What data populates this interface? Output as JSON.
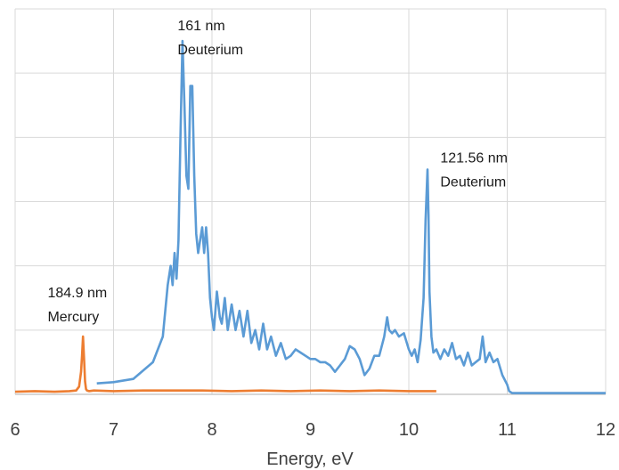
{
  "chart_data": {
    "type": "line",
    "xlabel": "Energy, eV",
    "ylabel": "",
    "xlim": [
      6,
      12
    ],
    "ylim": [
      0,
      6
    ],
    "x_ticks": [
      "6",
      "7",
      "8",
      "9",
      "10",
      "11",
      "12"
    ],
    "grid": true,
    "legend": "none",
    "series": [
      {
        "color": "#5b9bd5",
        "x": [
          6.83,
          7.0,
          7.2,
          7.4,
          7.5,
          7.55,
          7.58,
          7.6,
          7.62,
          7.64,
          7.66,
          7.68,
          7.7,
          7.72,
          7.74,
          7.76,
          7.78,
          7.8,
          7.82,
          7.84,
          7.86,
          7.88,
          7.9,
          7.92,
          7.94,
          7.96,
          7.98,
          8.0,
          8.02,
          8.05,
          8.08,
          8.1,
          8.13,
          8.16,
          8.2,
          8.24,
          8.28,
          8.32,
          8.36,
          8.4,
          8.44,
          8.48,
          8.52,
          8.56,
          8.6,
          8.65,
          8.7,
          8.75,
          8.8,
          8.85,
          8.9,
          8.95,
          9.0,
          9.05,
          9.1,
          9.15,
          9.2,
          9.25,
          9.3,
          9.35,
          9.4,
          9.45,
          9.5,
          9.55,
          9.6,
          9.65,
          9.7,
          9.75,
          9.78,
          9.8,
          9.83,
          9.86,
          9.9,
          9.95,
          10.0,
          10.03,
          10.06,
          10.09,
          10.12,
          10.15,
          10.17,
          10.19,
          10.2,
          10.21,
          10.23,
          10.25,
          10.28,
          10.32,
          10.36,
          10.4,
          10.44,
          10.48,
          10.52,
          10.56,
          10.6,
          10.64,
          10.68,
          10.72,
          10.75,
          10.78,
          10.82,
          10.86,
          10.9,
          10.95,
          11.0,
          11.02,
          11.05,
          11.1,
          11.5,
          12.0
        ],
        "y": [
          0.17,
          0.19,
          0.24,
          0.5,
          0.9,
          1.7,
          2.0,
          1.7,
          2.2,
          1.8,
          2.4,
          4.0,
          5.5,
          4.5,
          3.4,
          3.2,
          4.8,
          4.8,
          3.4,
          2.5,
          2.2,
          2.4,
          2.6,
          2.2,
          2.6,
          2.2,
          1.5,
          1.2,
          1.0,
          1.6,
          1.2,
          1.1,
          1.5,
          1.0,
          1.4,
          1.0,
          1.3,
          0.9,
          1.3,
          0.8,
          1.0,
          0.7,
          1.1,
          0.7,
          0.9,
          0.6,
          0.8,
          0.55,
          0.6,
          0.7,
          0.65,
          0.6,
          0.55,
          0.55,
          0.5,
          0.5,
          0.45,
          0.35,
          0.45,
          0.55,
          0.75,
          0.7,
          0.55,
          0.3,
          0.4,
          0.6,
          0.6,
          0.9,
          1.2,
          1.0,
          0.95,
          1.0,
          0.9,
          0.95,
          0.7,
          0.6,
          0.7,
          0.5,
          0.85,
          1.5,
          2.7,
          3.5,
          2.8,
          1.6,
          0.9,
          0.65,
          0.7,
          0.55,
          0.7,
          0.6,
          0.8,
          0.55,
          0.6,
          0.45,
          0.65,
          0.45,
          0.5,
          0.55,
          0.9,
          0.5,
          0.65,
          0.5,
          0.55,
          0.3,
          0.15,
          0.05,
          0.02,
          0.02,
          0.02,
          0.02
        ]
      },
      {
        "color": "#ed7d31",
        "x": [
          6.0,
          6.2,
          6.4,
          6.55,
          6.62,
          6.65,
          6.67,
          6.68,
          6.69,
          6.7,
          6.71,
          6.72,
          6.73,
          6.75,
          6.8,
          7.0,
          7.3,
          7.6,
          7.9,
          8.2,
          8.5,
          8.8,
          9.1,
          9.4,
          9.7,
          10.0,
          10.28
        ],
        "y": [
          0.04,
          0.05,
          0.04,
          0.05,
          0.06,
          0.12,
          0.35,
          0.6,
          0.9,
          0.55,
          0.2,
          0.08,
          0.06,
          0.05,
          0.06,
          0.05,
          0.06,
          0.06,
          0.06,
          0.05,
          0.06,
          0.05,
          0.06,
          0.05,
          0.06,
          0.05,
          0.05
        ]
      }
    ],
    "annotations": [
      {
        "lines": [
          "161 nm",
          "Deuterium"
        ]
      },
      {
        "lines": [
          "121.56 nm",
          "Deuterium"
        ]
      },
      {
        "lines": [
          "184.9 nm",
          "Mercury"
        ]
      }
    ]
  }
}
